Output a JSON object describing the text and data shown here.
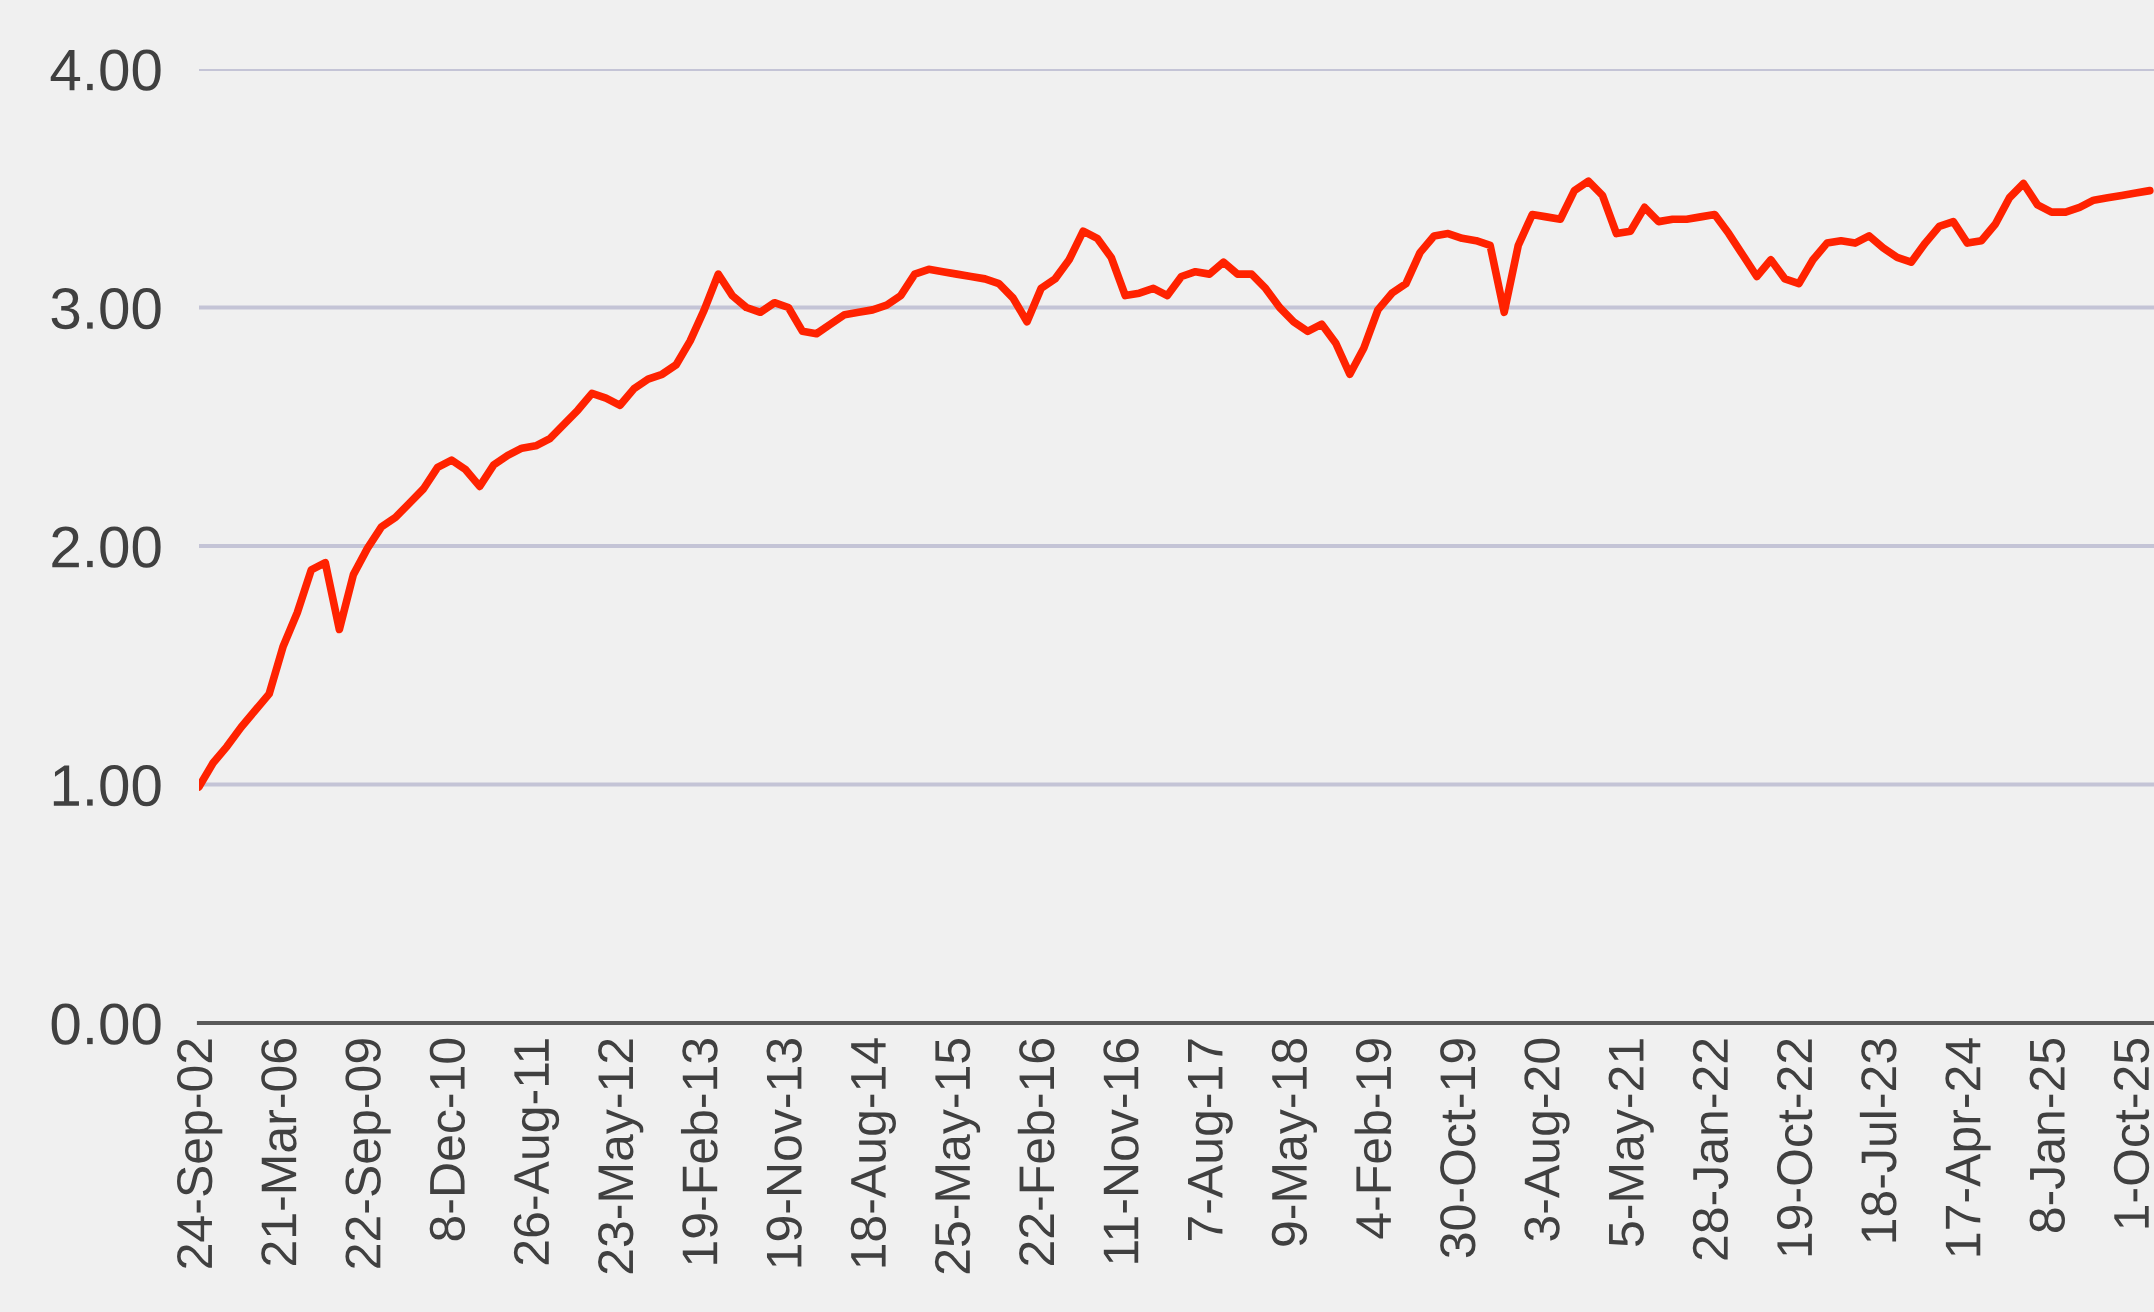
{
  "chart_data": {
    "type": "line",
    "categories": [
      "24-Sep-02",
      null,
      null,
      null,
      null,
      null,
      "21-Mar-06",
      null,
      null,
      null,
      null,
      null,
      "22-Sep-09",
      null,
      null,
      null,
      null,
      null,
      "8-Dec-10",
      null,
      null,
      null,
      null,
      null,
      "26-Aug-11",
      null,
      null,
      null,
      null,
      null,
      "23-May-12",
      null,
      null,
      null,
      null,
      null,
      "19-Feb-13",
      null,
      null,
      null,
      null,
      null,
      "19-Nov-13",
      null,
      null,
      null,
      null,
      null,
      "18-Aug-14",
      null,
      null,
      null,
      null,
      null,
      "25-May-15",
      null,
      null,
      null,
      null,
      null,
      "22-Feb-16",
      null,
      null,
      null,
      null,
      null,
      "11-Nov-16",
      null,
      null,
      null,
      null,
      null,
      "7-Aug-17",
      null,
      null,
      null,
      null,
      null,
      "9-May-18",
      null,
      null,
      null,
      null,
      null,
      "4-Feb-19",
      null,
      null,
      null,
      null,
      null,
      "30-Oct-19",
      null,
      null,
      null,
      null,
      null,
      "3-Aug-20",
      null,
      null,
      null,
      null,
      null,
      "5-May-21",
      null,
      null,
      null,
      null,
      null,
      "28-Jan-22",
      null,
      null,
      null,
      null,
      null,
      "19-Oct-22",
      null,
      null,
      null,
      null,
      null,
      "18-Jul-23",
      null,
      null,
      null,
      null,
      null,
      "17-Apr-24",
      null,
      null,
      null,
      null,
      null,
      "8-Jan-25",
      null,
      null,
      null,
      null,
      null,
      "1-Oct-25",
      null
    ],
    "series": [
      {
        "color": "#ff2200",
        "values": [
          0.99,
          1.09,
          1.16,
          1.24,
          1.31,
          1.38,
          1.58,
          1.72,
          1.9,
          1.93,
          1.65,
          1.88,
          1.99,
          2.08,
          2.12,
          2.18,
          2.24,
          2.33,
          2.36,
          2.32,
          2.25,
          2.34,
          2.38,
          2.41,
          2.42,
          2.45,
          2.51,
          2.57,
          2.64,
          2.62,
          2.59,
          2.66,
          2.7,
          2.72,
          2.76,
          2.86,
          2.99,
          3.14,
          3.05,
          3.0,
          2.98,
          3.02,
          3.0,
          2.9,
          2.89,
          2.93,
          2.97,
          2.98,
          2.99,
          3.01,
          3.05,
          3.14,
          3.16,
          3.15,
          3.14,
          3.13,
          3.12,
          3.1,
          3.04,
          2.94,
          3.08,
          3.12,
          3.2,
          3.32,
          3.29,
          3.21,
          3.05,
          3.06,
          3.08,
          3.05,
          3.13,
          3.15,
          3.14,
          3.19,
          3.14,
          3.14,
          3.08,
          3.0,
          2.94,
          2.9,
          2.93,
          2.85,
          2.72,
          2.83,
          2.99,
          3.06,
          3.1,
          3.23,
          3.3,
          3.31,
          3.29,
          3.28,
          3.26,
          2.98,
          3.26,
          3.39,
          3.38,
          3.37,
          3.49,
          3.53,
          3.47,
          3.31,
          3.32,
          3.42,
          3.36,
          3.37,
          3.37,
          3.38,
          3.39,
          3.31,
          3.22,
          3.13,
          3.2,
          3.12,
          3.1,
          3.2,
          3.27,
          3.28,
          3.27,
          3.3,
          3.25,
          3.21,
          3.19,
          3.27,
          3.34,
          3.36,
          3.27,
          3.28,
          3.35,
          3.46,
          3.52,
          3.43,
          3.4,
          3.4,
          3.42,
          3.45,
          3.46,
          3.47,
          3.48,
          3.49
        ]
      }
    ],
    "ylim": [
      0,
      4
    ],
    "yticks": [
      {
        "value": 0,
        "label": "0.00"
      },
      {
        "value": 1,
        "label": "1.00"
      },
      {
        "value": 2,
        "label": "2.00"
      },
      {
        "value": 3,
        "label": "3.00"
      },
      {
        "value": 4,
        "label": "4.00"
      }
    ],
    "grid": "y",
    "line_style": "solid"
  }
}
